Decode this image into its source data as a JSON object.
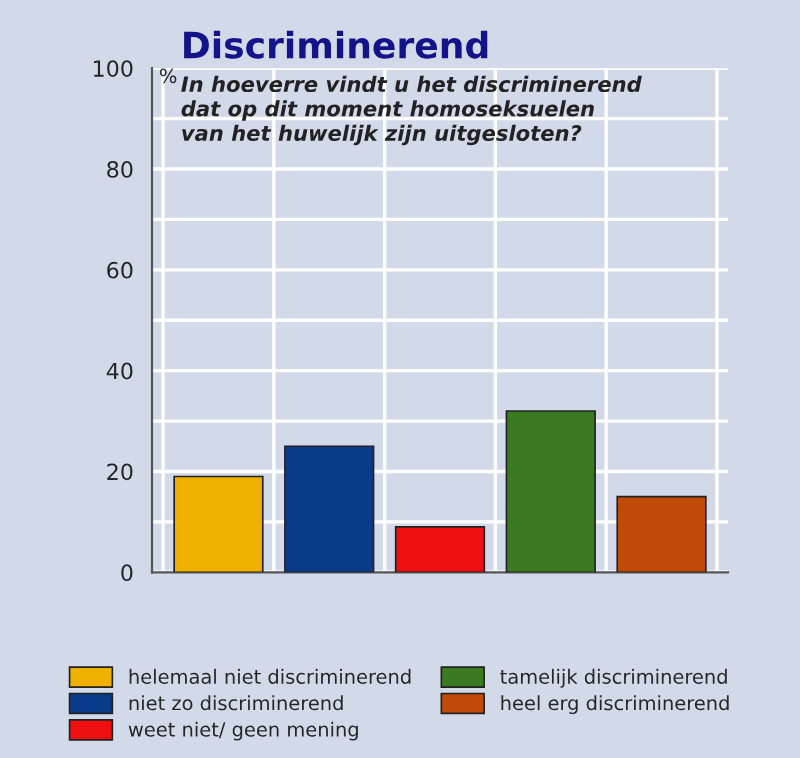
{
  "chart_data": {
    "type": "bar",
    "title": "Discriminerend",
    "subtitle": "In hoeverre vindt u het discriminerend\ndat op dit moment homoseksuelen\nvan het huwelijk zijn uitgesloten?",
    "ylabel": "%",
    "categories": [
      null,
      null,
      null,
      null,
      null
    ],
    "series": [
      {
        "name": "helemaal niet discriminerend",
        "color": "#f0b000",
        "values": [
          19,
          null,
          null,
          null,
          null
        ]
      },
      {
        "name": "niet zo discriminerend",
        "color": "#0a3a8a",
        "values": [
          null,
          25,
          null,
          null,
          null
        ]
      },
      {
        "name": "weet niet/ geen mening",
        "color": "#ee1010",
        "values": [
          null,
          null,
          9,
          null,
          null
        ]
      },
      {
        "name": "tamelijk discriminerend",
        "color": "#3a7a20",
        "values": [
          null,
          null,
          null,
          32,
          null
        ]
      },
      {
        "name": "heel erg discriminerend",
        "color": "#c04a08",
        "values": [
          null,
          null,
          null,
          null,
          15
        ]
      }
    ],
    "ylim": [
      0,
      100
    ],
    "yticks": [
      0,
      {
        "value": 10,
        "label": null
      },
      20,
      {
        "value": 30,
        "label": null
      },
      40,
      {
        "value": 50,
        "label": null
      },
      60,
      {
        "value": 70,
        "label": null
      },
      80,
      {
        "value": 90,
        "label": null
      },
      100
    ],
    "grid": true,
    "legend": "bottom",
    "tick_labels": "y"
  }
}
